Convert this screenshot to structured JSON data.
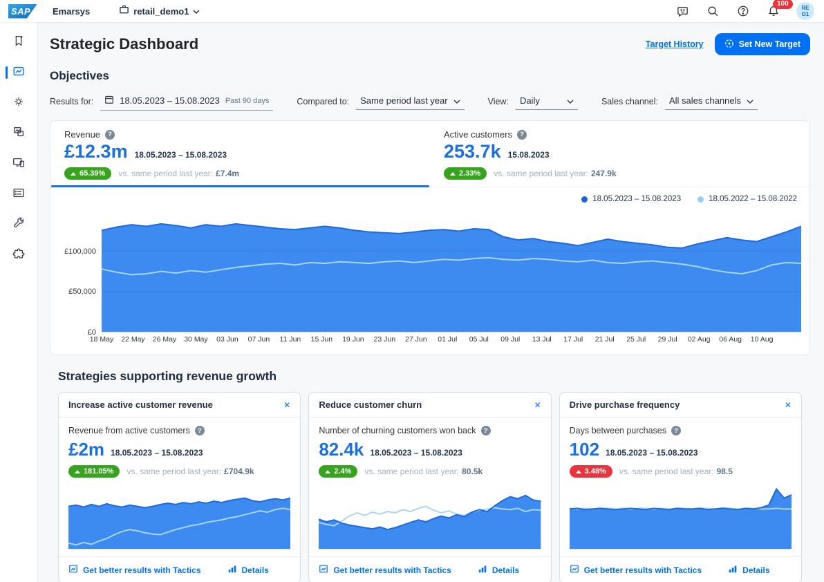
{
  "colors": {
    "accent": "#0070f2",
    "value_blue": "#1b70e0",
    "green": "#36a41d",
    "red": "#e8343c",
    "heading": "#1d2d3e",
    "text": "#32363a",
    "muted": "#a4afbb",
    "muted_strong": "#5b738b",
    "chart_fill": "#3d8af0",
    "chart_stroke": "#1e6ad8",
    "chart_line_prev": "#a9d6f5",
    "legend_dot_current": "#1464dc",
    "legend_dot_previous": "#9bcdf3",
    "avatar_bg": "#cdeafb",
    "avatar_text": "#0a6ed1",
    "notification_red": "#e8343c"
  },
  "icons": {
    "help": "?",
    "close": "✕"
  },
  "topbar": {
    "logo_text": "SAP",
    "product": "Emarsys",
    "account": "retail_demo1",
    "notification_count": "100",
    "avatar_line1": "RE",
    "avatar_line2": "O1"
  },
  "header": {
    "title": "Strategic Dashboard",
    "target_history_label": "Target History",
    "set_new_target_label": "Set New Target"
  },
  "objectives": {
    "heading": "Objectives",
    "filters": {
      "results_for_label": "Results for:",
      "date_range": "18.05.2023 – 15.08.2023",
      "date_hint": "Past 90 days",
      "compared_to_label": "Compared to:",
      "compared_to_value": "Same period last year",
      "view_label": "View:",
      "view_value": "Daily",
      "sales_channel_label": "Sales channel:",
      "sales_channel_value": "All sales channels"
    },
    "kpis": [
      {
        "label": "Revenue",
        "value": "£12.3m",
        "period": "18.05.2023 – 15.08.2023",
        "change": "65.39%",
        "trend": "up",
        "status": "positive",
        "comparison_label": "vs. same period last year:",
        "comparison_value": "£7.4m",
        "selected": true
      },
      {
        "label": "Active customers",
        "value": "253.7k",
        "period": "15.08.2023",
        "change": "2.33%",
        "trend": "up",
        "status": "positive",
        "comparison_label": "vs. same period last year:",
        "comparison_value": "247.9k",
        "selected": false
      }
    ]
  },
  "strategies": {
    "heading": "Strategies supporting revenue growth",
    "cards": [
      {
        "title": "Increase active customer revenue",
        "metric_label": "Revenue from active customers",
        "value": "£2m",
        "period": "18.05.2023 – 15.08.2023",
        "change": "181.05%",
        "trend": "up",
        "status": "positive",
        "comparison_label": "vs. same period last year:",
        "comparison_value": "£704.9k",
        "tactics_label": "Get better results with Tactics",
        "details_label": "Details"
      },
      {
        "title": "Reduce customer churn",
        "metric_label": "Number of churning customers won back",
        "value": "82.4k",
        "period": "18.05.2023 – 15.08.2023",
        "change": "2.4%",
        "trend": "up",
        "status": "positive",
        "comparison_label": "vs. same period last year:",
        "comparison_value": "80.5k",
        "tactics_label": "Get better results with Tactics",
        "details_label": "Details"
      },
      {
        "title": "Drive purchase frequency",
        "metric_label": "Days between purchases",
        "value": "102",
        "period": "18.05.2023 – 15.08.2023",
        "change": "3.48%",
        "trend": "up",
        "status": "negative",
        "comparison_label": "vs. same period last year:",
        "comparison_value": "98.5",
        "tactics_label": "Get better results with Tactics",
        "details_label": "Details"
      }
    ]
  },
  "chart_data": [
    {
      "type": "area",
      "name": "revenue-daily",
      "legend": [
        "18.05.2023 – 15.08.2023",
        "18.05.2022 – 15.08.2022"
      ],
      "x_ticks": [
        "18 May",
        "22 May",
        "26 May",
        "30 May",
        "03 Jun",
        "07 Jun",
        "11 Jun",
        "15 Jun",
        "19 Jun",
        "23 Jun",
        "27 Jun",
        "01 Jul",
        "05 Jul",
        "09 Jul",
        "13 Jul",
        "17 Jul",
        "21 Jul",
        "25 Jul",
        "29 Jul",
        "02 Aug",
        "06 Aug",
        "10 Aug"
      ],
      "x_tick_step": 4,
      "x_span": 89,
      "y_tick_labels": [
        "£0",
        "£50,000",
        "£100,000"
      ],
      "y_tick_values": [
        0,
        50000,
        100000
      ],
      "ylim": [
        0,
        152000
      ],
      "grid_values": [
        50000,
        100000
      ],
      "series": [
        {
          "name": "18.05.2023 – 15.08.2023",
          "values": [
            126000,
            130000,
            133000,
            131000,
            134000,
            132000,
            129000,
            133000,
            131000,
            134000,
            132000,
            130000,
            128000,
            127000,
            129000,
            131000,
            129000,
            126000,
            124000,
            123000,
            122000,
            124000,
            126000,
            127000,
            125000,
            128000,
            127000,
            118000,
            114000,
            116000,
            112000,
            110000,
            107000,
            111000,
            115000,
            112000,
            110000,
            108000,
            105000,
            104000,
            109000,
            113000,
            117000,
            114000,
            112000,
            118000,
            124000,
            131000
          ]
        },
        {
          "name": "18.05.2022 – 15.08.2022",
          "values": [
            78000,
            74000,
            71000,
            72000,
            75000,
            73000,
            76000,
            74000,
            77000,
            80000,
            82000,
            84000,
            85000,
            83000,
            86000,
            85000,
            87000,
            86000,
            85000,
            87000,
            88000,
            86000,
            88000,
            90000,
            89000,
            91000,
            92000,
            90000,
            89000,
            91000,
            90000,
            88000,
            87000,
            89000,
            86000,
            85000,
            87000,
            88000,
            86000,
            84000,
            81000,
            77000,
            74000,
            72000,
            76000,
            83000,
            86000,
            85000
          ]
        }
      ]
    },
    {
      "type": "area",
      "name": "increase-active-customer-revenue",
      "ylim": [
        0,
        100
      ],
      "series": [
        {
          "name": "current period",
          "values": [
            66,
            68,
            65,
            69,
            66,
            70,
            67,
            65,
            68,
            66,
            64,
            66,
            69,
            71,
            69,
            72,
            70,
            73,
            71,
            74,
            72,
            75,
            77,
            79,
            75,
            73,
            76,
            78,
            76,
            79
          ]
        },
        {
          "name": "previous period",
          "values": [
            9,
            6,
            10,
            7,
            12,
            16,
            22,
            27,
            30,
            28,
            25,
            23,
            22,
            26,
            30,
            33,
            36,
            38,
            41,
            43,
            45,
            48,
            50,
            53,
            56,
            59,
            57,
            61,
            63,
            61
          ]
        }
      ]
    },
    {
      "type": "area",
      "name": "reduce-customer-churn",
      "ylim": [
        0,
        100
      ],
      "series": [
        {
          "name": "current period",
          "values": [
            46,
            42,
            45,
            40,
            37,
            35,
            33,
            31,
            34,
            30,
            33,
            37,
            41,
            45,
            42,
            47,
            51,
            48,
            53,
            50,
            57,
            61,
            58,
            67,
            75,
            81,
            78,
            83,
            76,
            74
          ]
        },
        {
          "name": "previous period",
          "values": [
            41,
            38,
            36,
            43,
            51,
            56,
            52,
            57,
            54,
            58,
            56,
            61,
            58,
            63,
            66,
            60,
            56,
            59,
            54,
            52,
            57,
            60,
            62,
            64,
            62,
            61,
            63,
            58,
            61,
            60
          ]
        }
      ]
    },
    {
      "type": "area",
      "name": "drive-purchase-frequency",
      "ylim": [
        0,
        100
      ],
      "series": [
        {
          "name": "current period",
          "values": [
            62,
            63,
            61,
            62,
            63,
            62,
            61,
            62,
            63,
            62,
            61,
            63,
            62,
            61,
            63,
            62,
            62,
            63,
            61,
            62,
            63,
            62,
            61,
            63,
            62,
            64,
            68,
            93,
            79,
            84
          ]
        },
        {
          "name": "previous period",
          "values": [
            63,
            62,
            63,
            62,
            63,
            63,
            62,
            63,
            62,
            63,
            63,
            62,
            63,
            62,
            63,
            63,
            62,
            63,
            63,
            62,
            64,
            63,
            62,
            63,
            63,
            62,
            62,
            63,
            62,
            62
          ]
        }
      ]
    }
  ]
}
